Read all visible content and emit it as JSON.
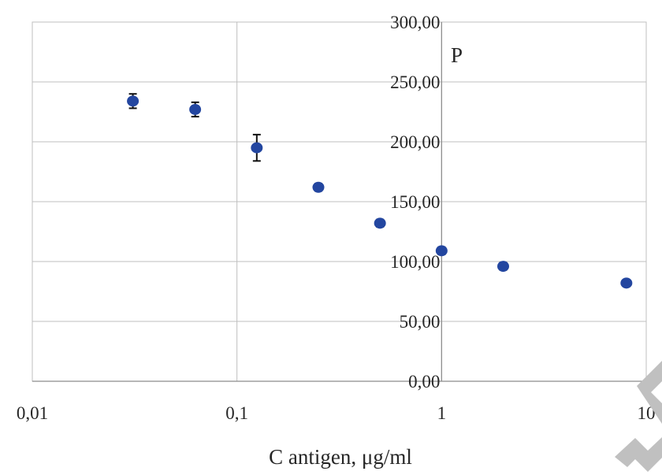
{
  "chart_data": {
    "type": "scatter",
    "title": "",
    "xlabel": "C antigen, μg/ml",
    "ylabel": "P",
    "x_scale": "log",
    "xlim": [
      0.01,
      10
    ],
    "ylim": [
      0,
      300
    ],
    "x_ticks": [
      0.01,
      0.1,
      1,
      10
    ],
    "x_tick_labels": [
      "0,01",
      "0,1",
      "1",
      "10"
    ],
    "y_ticks": [
      0,
      50,
      100,
      150,
      200,
      250,
      300
    ],
    "y_tick_labels": [
      "0,00",
      "50,00",
      "100,00",
      "150,00",
      "200,00",
      "250,00",
      "300,00"
    ],
    "grid": true,
    "legend": "none",
    "marker_color": "#2346a0",
    "series": [
      {
        "x": [
          0.031,
          0.0625,
          0.125,
          0.25,
          0.5,
          1,
          2,
          8
        ],
        "y": [
          234,
          227,
          195,
          162,
          132,
          109,
          96,
          82
        ],
        "error": [
          6,
          6,
          11,
          3,
          3,
          3,
          3,
          2
        ]
      }
    ]
  }
}
